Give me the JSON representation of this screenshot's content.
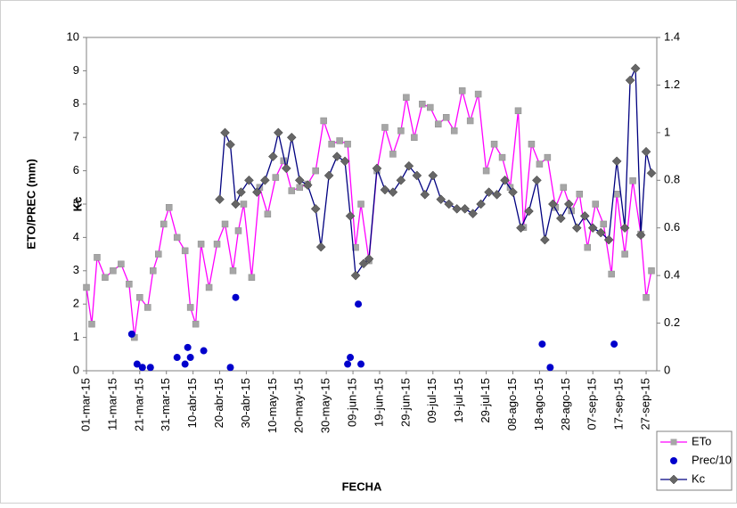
{
  "chart_data": {
    "type": "line",
    "ylabel": "ETO/PREC (mm)",
    "y2label": "Kc",
    "xlabel": "FECHA",
    "xlim": [
      "2015-03-01",
      "2015-10-01"
    ],
    "xticks": [
      {
        "value": "2015-03-01",
        "label": "01-mar-15"
      },
      {
        "value": "2015-03-11",
        "label": "11-mar-15"
      },
      {
        "value": "2015-03-21",
        "label": "21-mar-15"
      },
      {
        "value": "2015-03-31",
        "label": "31-mar-15"
      },
      {
        "value": "2015-04-10",
        "label": "10-abr-15"
      },
      {
        "value": "2015-04-20",
        "label": "20-abr-15"
      },
      {
        "value": "2015-04-30",
        "label": "30-abr-15"
      },
      {
        "value": "2015-05-10",
        "label": "10-may-15"
      },
      {
        "value": "2015-05-20",
        "label": "20-may-15"
      },
      {
        "value": "2015-05-30",
        "label": "30-may-15"
      },
      {
        "value": "2015-06-09",
        "label": "09-jun-15"
      },
      {
        "value": "2015-06-19",
        "label": "19-jun-15"
      },
      {
        "value": "2015-06-29",
        "label": "29-jun-15"
      },
      {
        "value": "2015-07-09",
        "label": "09-jul-15"
      },
      {
        "value": "2015-07-19",
        "label": "19-jul-15"
      },
      {
        "value": "2015-07-29",
        "label": "29-jul-15"
      },
      {
        "value": "2015-08-08",
        "label": "08-ago-15"
      },
      {
        "value": "2015-08-18",
        "label": "18-ago-15"
      },
      {
        "value": "2015-08-28",
        "label": "28-ago-15"
      },
      {
        "value": "2015-09-07",
        "label": "07-sep-15"
      },
      {
        "value": "2015-09-17",
        "label": "17-sep-15"
      },
      {
        "value": "2015-09-27",
        "label": "27-sep-15"
      }
    ],
    "ylim": [
      0,
      10
    ],
    "yticks": [
      0,
      1,
      2,
      3,
      4,
      5,
      6,
      7,
      8,
      9,
      10
    ],
    "y2lim": [
      0,
      1.4
    ],
    "y2ticks": [
      0,
      0.2,
      0.4,
      0.6,
      0.8,
      1,
      1.2,
      1.4
    ],
    "series": [
      {
        "name": "ETo",
        "color": "#ff00ff",
        "marker_color": "#a6a6a6",
        "marker": "square",
        "line": true,
        "x": [
          "2015-03-01",
          "2015-03-03",
          "2015-03-05",
          "2015-03-08",
          "2015-03-11",
          "2015-03-14",
          "2015-03-17",
          "2015-03-19",
          "2015-03-21",
          "2015-03-24",
          "2015-03-26",
          "2015-03-28",
          "2015-03-30",
          "2015-04-01",
          "2015-04-04",
          "2015-04-07",
          "2015-04-09",
          "2015-04-11",
          "2015-04-13",
          "2015-04-16",
          "2015-04-19",
          "2015-04-22",
          "2015-04-25",
          "2015-04-27",
          "2015-04-29",
          "2015-05-02",
          "2015-05-05",
          "2015-05-08",
          "2015-05-11",
          "2015-05-14",
          "2015-05-17",
          "2015-05-20",
          "2015-05-23",
          "2015-05-26",
          "2015-05-29",
          "2015-06-01",
          "2015-06-04",
          "2015-06-07",
          "2015-06-10",
          "2015-06-12",
          "2015-06-15",
          "2015-06-18",
          "2015-06-21",
          "2015-06-24",
          "2015-06-27",
          "2015-06-29",
          "2015-07-02",
          "2015-07-05",
          "2015-07-08",
          "2015-07-11",
          "2015-07-14",
          "2015-07-17",
          "2015-07-20",
          "2015-07-23",
          "2015-07-26",
          "2015-07-29",
          "2015-08-01",
          "2015-08-04",
          "2015-08-07",
          "2015-08-10",
          "2015-08-12",
          "2015-08-15",
          "2015-08-18",
          "2015-08-21",
          "2015-08-24",
          "2015-08-27",
          "2015-08-30",
          "2015-09-02",
          "2015-09-05",
          "2015-09-08",
          "2015-09-11",
          "2015-09-14",
          "2015-09-16",
          "2015-09-19",
          "2015-09-22",
          "2015-09-25",
          "2015-09-27",
          "2015-09-29"
        ],
        "values": [
          2.5,
          1.4,
          3.4,
          2.8,
          3.0,
          3.2,
          2.6,
          1.0,
          2.2,
          1.9,
          3.0,
          3.5,
          4.4,
          4.9,
          4.0,
          3.6,
          1.9,
          1.4,
          3.8,
          2.5,
          3.8,
          4.4,
          3.0,
          4.2,
          5.0,
          2.8,
          5.5,
          4.7,
          5.8,
          6.3,
          5.4,
          5.5,
          5.6,
          6.0,
          7.5,
          6.8,
          6.9,
          6.8,
          3.7,
          5.0,
          3.3,
          6.0,
          7.3,
          6.5,
          7.2,
          8.2,
          7.0,
          8.0,
          7.9,
          7.4,
          7.6,
          7.2,
          8.4,
          7.5,
          8.3,
          6.0,
          6.8,
          6.4,
          5.5,
          7.8,
          4.3,
          6.8,
          6.2,
          6.4,
          4.9,
          5.5,
          4.8,
          5.3,
          3.7,
          5.0,
          4.4,
          2.9,
          5.3,
          3.5,
          5.7,
          4.1,
          2.2,
          3.0
        ]
      },
      {
        "name": "Prec/10",
        "color": "#0000cc",
        "marker_color": "#0000cc",
        "marker": "circle",
        "line": false,
        "x": [
          "2015-03-18",
          "2015-03-20",
          "2015-03-22",
          "2015-03-25",
          "2015-04-04",
          "2015-04-07",
          "2015-04-08",
          "2015-04-09",
          "2015-04-14",
          "2015-04-24",
          "2015-04-26",
          "2015-06-07",
          "2015-06-08",
          "2015-06-11",
          "2015-06-12",
          "2015-08-19",
          "2015-08-22",
          "2015-09-15"
        ],
        "values": [
          1.1,
          0.2,
          0.1,
          0.1,
          0.4,
          0.2,
          0.7,
          0.4,
          0.6,
          0.1,
          2.2,
          0.2,
          0.4,
          2.0,
          0.2,
          0.8,
          0.1,
          0.8
        ]
      },
      {
        "name": "Kc",
        "color": "#000080",
        "marker_color": "#666666",
        "marker": "diamond",
        "line": true,
        "axis": "y2",
        "x": [
          "2015-04-20",
          "2015-04-22",
          "2015-04-24",
          "2015-04-26",
          "2015-04-28",
          "2015-05-01",
          "2015-05-04",
          "2015-05-07",
          "2015-05-10",
          "2015-05-12",
          "2015-05-15",
          "2015-05-17",
          "2015-05-20",
          "2015-05-23",
          "2015-05-26",
          "2015-05-28",
          "2015-05-31",
          "2015-06-03",
          "2015-06-06",
          "2015-06-08",
          "2015-06-10",
          "2015-06-13",
          "2015-06-15",
          "2015-06-18",
          "2015-06-21",
          "2015-06-24",
          "2015-06-27",
          "2015-06-30",
          "2015-07-03",
          "2015-07-06",
          "2015-07-09",
          "2015-07-12",
          "2015-07-15",
          "2015-07-18",
          "2015-07-21",
          "2015-07-24",
          "2015-07-27",
          "2015-07-30",
          "2015-08-02",
          "2015-08-05",
          "2015-08-08",
          "2015-08-11",
          "2015-08-14",
          "2015-08-17",
          "2015-08-20",
          "2015-08-23",
          "2015-08-26",
          "2015-08-29",
          "2015-09-01",
          "2015-09-04",
          "2015-09-07",
          "2015-09-10",
          "2015-09-13",
          "2015-09-16",
          "2015-09-19",
          "2015-09-21",
          "2015-09-23",
          "2015-09-25",
          "2015-09-27",
          "2015-09-29"
        ],
        "values": [
          0.72,
          1.0,
          0.95,
          0.7,
          0.75,
          0.8,
          0.75,
          0.8,
          0.9,
          1.0,
          0.85,
          0.98,
          0.8,
          0.78,
          0.68,
          0.52,
          0.82,
          0.9,
          0.88,
          0.65,
          0.4,
          0.45,
          0.47,
          0.85,
          0.76,
          0.75,
          0.8,
          0.86,
          0.82,
          0.74,
          0.82,
          0.72,
          0.7,
          0.68,
          0.68,
          0.66,
          0.7,
          0.75,
          0.74,
          0.8,
          0.75,
          0.6,
          0.67,
          0.8,
          0.55,
          0.7,
          0.64,
          0.7,
          0.6,
          0.65,
          0.6,
          0.58,
          0.55,
          0.88,
          0.6,
          1.22,
          1.27,
          0.57,
          0.92,
          0.83
        ]
      }
    ]
  }
}
